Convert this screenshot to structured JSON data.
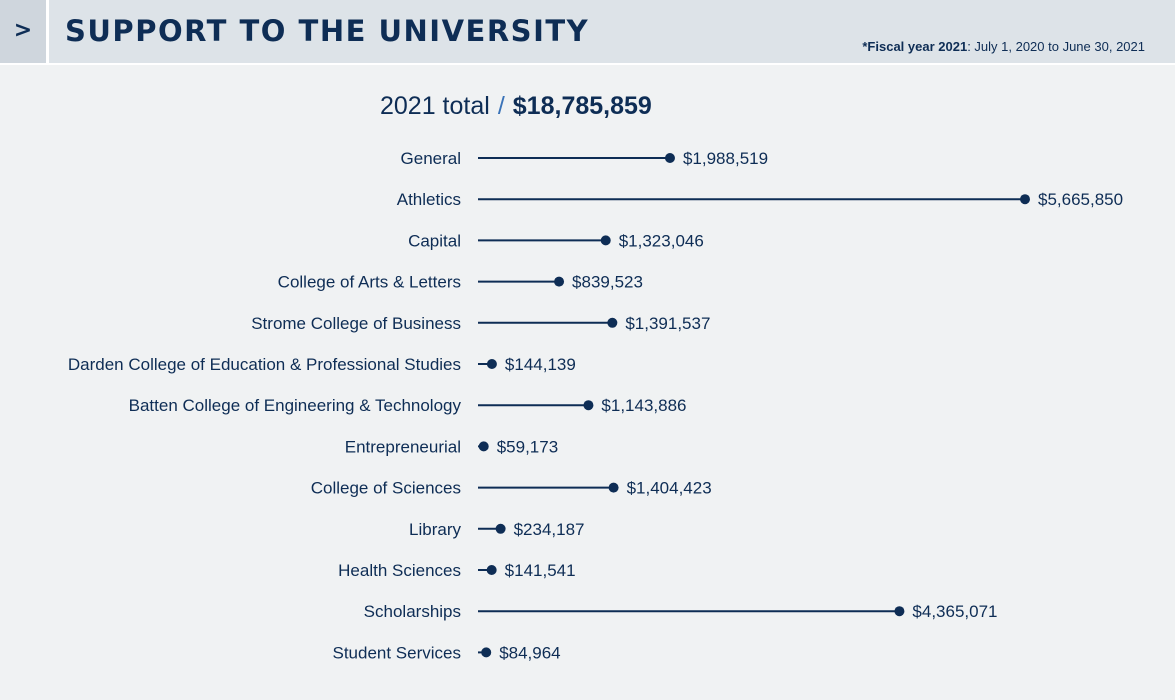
{
  "header": {
    "nav_glyph": ">",
    "title": "SUPPORT TO THE UNIVERSITY",
    "fiscal_prefix": "*Fiscal year 2021",
    "fiscal_suffix": ": July 1, 2020 to June 30, 2021"
  },
  "total": {
    "label": "2021 total",
    "separator": "/",
    "amount": "$18,785,859"
  },
  "colors": {
    "accent": "#0e2d55",
    "separator": "#3a73b8",
    "background": "#f0f2f3",
    "header": "#dde3e8"
  },
  "chart_data": {
    "type": "bar",
    "orientation": "horizontal",
    "style": "lollipop",
    "categories": [
      "General",
      "Athletics",
      "Capital",
      "College of Arts & Letters",
      "Strome College of Business",
      "Darden College of Education & Professional Studies",
      "Batten College of Engineering & Technology",
      "Entrepreneurial",
      "College of Sciences",
      "Library",
      "Health Sciences",
      "Scholarships",
      "Student Services"
    ],
    "values": [
      1988519,
      5665850,
      1323046,
      839523,
      1391537,
      144139,
      1143886,
      59173,
      1404423,
      234187,
      141541,
      4365071,
      84964
    ],
    "value_labels": [
      "$1,988,519",
      "$5,665,850",
      "$1,323,046",
      "$839,523",
      "$1,391,537",
      "$144,139",
      "$1,143,886",
      "$59,173",
      "$1,404,423",
      "$234,187",
      "$141,541",
      "$4,365,071",
      "$84,964"
    ],
    "title": "",
    "xlabel": "",
    "ylabel": "",
    "grid": false,
    "legend": "none"
  }
}
